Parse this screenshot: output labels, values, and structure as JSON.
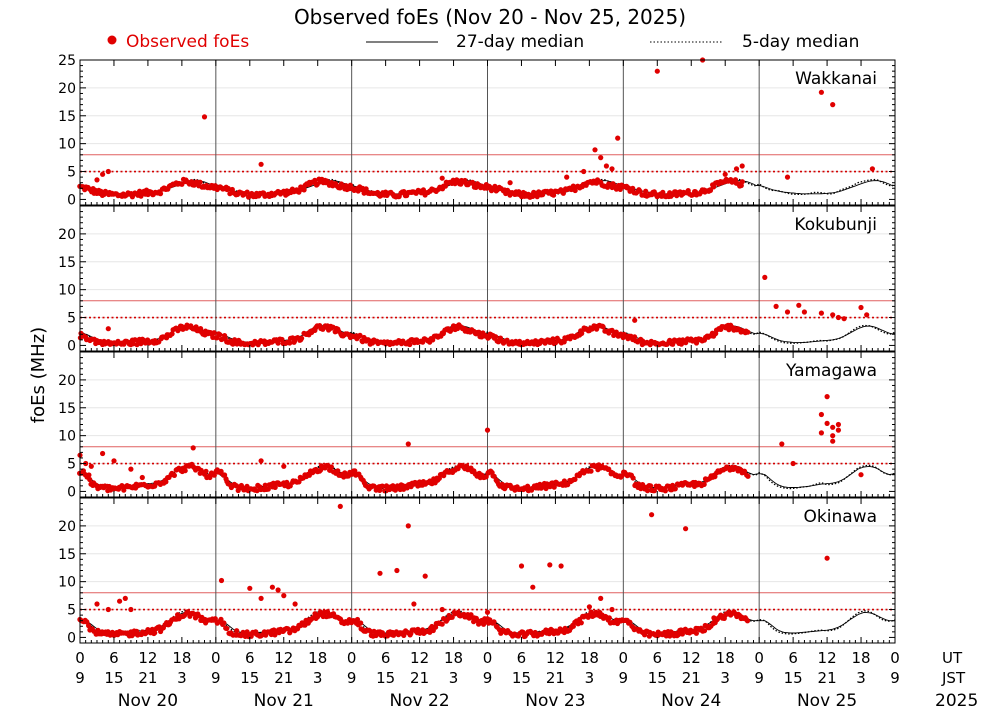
{
  "chart_data": {
    "type": "scatter",
    "title": "Observed foEs (Nov 20 - Nov 25, 2025)",
    "ylabel": "foEs (MHz)",
    "xlabel": "",
    "legend": {
      "position": "top",
      "entries": [
        {
          "label": "Observed foEs",
          "style": "red-dot"
        },
        {
          "label": "27-day median",
          "style": "solid-line"
        },
        {
          "label": "5-day median",
          "style": "dotted-line"
        }
      ]
    },
    "x_range_hours": [
      0,
      144
    ],
    "y_range": [
      -1,
      25
    ],
    "y_ticks": [
      0,
      5,
      10,
      15,
      20,
      25
    ],
    "reference_lines": [
      {
        "value": 5,
        "style": "dotted",
        "color": "#d40000"
      },
      {
        "value": 8,
        "style": "solid",
        "color": "#e06060"
      }
    ],
    "x_axis": {
      "ut_ticks": [
        "0",
        "6",
        "12",
        "18",
        "0",
        "6",
        "12",
        "18",
        "0",
        "6",
        "12",
        "18",
        "0",
        "6",
        "12",
        "18",
        "0",
        "6",
        "12",
        "18",
        "0",
        "6",
        "12",
        "18",
        "0"
      ],
      "jst_ticks": [
        "9",
        "15",
        "21",
        "3",
        "9",
        "15",
        "21",
        "3",
        "9",
        "15",
        "21",
        "3",
        "9",
        "15",
        "21",
        "3",
        "9",
        "15",
        "21",
        "3",
        "9",
        "15",
        "21",
        "3",
        "9"
      ],
      "ut_label": "UT",
      "jst_label": "JST",
      "day_labels": [
        "Nov 20",
        "Nov 21",
        "Nov 22",
        "Nov 23",
        "Nov 24",
        "Nov 25"
      ],
      "year_label": "2025"
    },
    "colors": {
      "observed": "#e00000",
      "median": "#000000",
      "refline": "#d40000",
      "frame": "#000000"
    },
    "panels": [
      {
        "station": "Wakkanai",
        "top_tick_label": "25",
        "observed_end_hour": 117,
        "median27": [
          2.5,
          2.2,
          1.8,
          1.5,
          1.3,
          1.2,
          1.1,
          1.0,
          1.0,
          1.0,
          1.0,
          1.1,
          1.2,
          1.4,
          1.8,
          2.2,
          2.6,
          3.0,
          3.3,
          3.4,
          3.2,
          2.8,
          2.2
        ],
        "median5": [
          2.8,
          2.0,
          1.6,
          1.6,
          1.3,
          1.0,
          0.9,
          0.9,
          1.0,
          1.3,
          1.2,
          1.0,
          1.0,
          1.6,
          2.0,
          2.4,
          3.0,
          3.3,
          3.5,
          3.6,
          3.0,
          2.5,
          2.4
        ],
        "baseline_obs": [
          2.2,
          2.0,
          1.6,
          1.2,
          1.0,
          0.9,
          0.8,
          0.8,
          0.9,
          1.0,
          1.1,
          1.2,
          1.3,
          1.5,
          2.0,
          2.5,
          3.0,
          3.2,
          3.1,
          2.8,
          2.5,
          2.3,
          2.2
        ],
        "spikes": [
          [
            3,
            3.5
          ],
          [
            4,
            4.5
          ],
          [
            5,
            5.0
          ],
          [
            22,
            14.8
          ],
          [
            32,
            6.3
          ],
          [
            43,
            3.0
          ],
          [
            64,
            3.8
          ],
          [
            76,
            3.0
          ],
          [
            86,
            4.0
          ],
          [
            89,
            5.0
          ],
          [
            91,
            8.9
          ],
          [
            92,
            7.5
          ],
          [
            93,
            6.0
          ],
          [
            94,
            5.5
          ],
          [
            95,
            11.0
          ],
          [
            102,
            23.0
          ],
          [
            110,
            25.0
          ],
          [
            114,
            4.5
          ],
          [
            116,
            5.5
          ],
          [
            117,
            6.0
          ],
          [
            125,
            4.0
          ],
          [
            131,
            19.2
          ],
          [
            133,
            17.0
          ],
          [
            140,
            5.5
          ]
        ]
      },
      {
        "station": "Kokubunji",
        "top_tick_label": "",
        "observed_end_hour": 118,
        "median27": [
          2.2,
          2.0,
          1.5,
          1.0,
          0.7,
          0.6,
          0.5,
          0.5,
          0.6,
          0.7,
          0.8,
          0.9,
          1.0,
          1.3,
          1.8,
          2.4,
          3.0,
          3.4,
          3.5,
          3.2,
          2.7,
          2.2,
          2.0
        ],
        "median5": [
          2.4,
          2.0,
          1.3,
          0.8,
          0.5,
          0.4,
          0.4,
          0.5,
          0.6,
          0.8,
          0.9,
          0.8,
          1.0,
          1.2,
          1.8,
          2.6,
          3.3,
          3.6,
          3.5,
          3.0,
          2.4,
          2.0,
          2.2
        ],
        "baseline_obs": [
          1.8,
          1.5,
          1.0,
          0.6,
          0.4,
          0.3,
          0.3,
          0.4,
          0.5,
          0.6,
          0.7,
          0.8,
          0.9,
          1.1,
          1.6,
          2.3,
          3.0,
          3.3,
          3.2,
          2.8,
          2.3,
          1.9,
          1.8
        ],
        "spikes": [
          [
            5,
            3.0
          ],
          [
            66,
            3.5
          ],
          [
            98,
            4.5
          ],
          [
            121,
            12.2
          ],
          [
            123,
            7.0
          ],
          [
            125,
            6.0
          ],
          [
            127,
            7.2
          ],
          [
            128,
            6.0
          ],
          [
            131,
            5.8
          ],
          [
            133,
            5.5
          ],
          [
            134,
            5.0
          ],
          [
            135,
            4.8
          ],
          [
            138,
            6.8
          ],
          [
            139,
            5.5
          ]
        ]
      },
      {
        "station": "Yamagawa",
        "top_tick_label": "",
        "observed_end_hour": 118,
        "median27": [
          3.2,
          3.0,
          2.0,
          1.2,
          0.8,
          0.7,
          0.7,
          0.8,
          0.9,
          1.1,
          1.3,
          1.4,
          1.5,
          1.8,
          2.4,
          3.2,
          4.0,
          4.4,
          4.5,
          4.2,
          3.5,
          3.0,
          3.2
        ],
        "median5": [
          3.4,
          2.8,
          1.6,
          0.9,
          0.6,
          0.5,
          0.6,
          0.8,
          0.9,
          1.2,
          1.6,
          1.2,
          1.3,
          1.6,
          2.4,
          3.3,
          4.2,
          4.6,
          4.7,
          4.3,
          3.4,
          3.0,
          3.0
        ],
        "baseline_obs": [
          3.5,
          3.2,
          1.2,
          0.8,
          0.6,
          0.5,
          0.5,
          0.6,
          0.7,
          0.9,
          1.1,
          1.2,
          1.3,
          1.6,
          2.2,
          3.0,
          3.8,
          4.2,
          4.4,
          4.0,
          3.3,
          2.8,
          3.0
        ],
        "spikes": [
          [
            0,
            6.5
          ],
          [
            1,
            5.0
          ],
          [
            2,
            4.5
          ],
          [
            4,
            6.8
          ],
          [
            6,
            5.5
          ],
          [
            9,
            4.0
          ],
          [
            11,
            2.5
          ],
          [
            20,
            7.8
          ],
          [
            32,
            5.5
          ],
          [
            36,
            4.5
          ],
          [
            58,
            8.5
          ],
          [
            72,
            11.0
          ],
          [
            124,
            8.5
          ],
          [
            126,
            5.0
          ],
          [
            131,
            13.8
          ],
          [
            131,
            10.5
          ],
          [
            132,
            12.2
          ],
          [
            132,
            17.0
          ],
          [
            133,
            10.0
          ],
          [
            133,
            9.0
          ],
          [
            133,
            11.5
          ],
          [
            134,
            11.0
          ],
          [
            134,
            12.0
          ],
          [
            138,
            3.0
          ]
        ]
      },
      {
        "station": "Okinawa",
        "top_tick_label": "",
        "observed_end_hour": 118,
        "median27": [
          3.0,
          3.0,
          2.2,
          1.3,
          0.9,
          0.8,
          0.8,
          0.9,
          1.0,
          1.1,
          1.2,
          1.3,
          1.5,
          1.9,
          2.6,
          3.4,
          4.1,
          4.5,
          4.4,
          4.0,
          3.4,
          3.0,
          3.0
        ],
        "median5": [
          3.2,
          3.0,
          1.8,
          1.0,
          0.7,
          0.6,
          0.7,
          0.8,
          1.0,
          1.2,
          1.3,
          1.2,
          1.3,
          1.7,
          2.6,
          3.6,
          4.4,
          4.8,
          4.6,
          3.9,
          3.1,
          2.9,
          3.0
        ],
        "baseline_obs": [
          3.0,
          2.8,
          1.2,
          0.8,
          0.6,
          0.5,
          0.5,
          0.6,
          0.7,
          0.8,
          1.0,
          1.1,
          1.2,
          1.5,
          2.2,
          3.0,
          3.8,
          4.2,
          4.2,
          3.8,
          3.0,
          2.7,
          3.0
        ],
        "spikes": [
          [
            3,
            6.0
          ],
          [
            5,
            5.0
          ],
          [
            7,
            6.5
          ],
          [
            8,
            7.0
          ],
          [
            9,
            5.0
          ],
          [
            25,
            10.2
          ],
          [
            30,
            8.8
          ],
          [
            32,
            7.0
          ],
          [
            34,
            9.0
          ],
          [
            35,
            8.5
          ],
          [
            36,
            7.5
          ],
          [
            38,
            6.0
          ],
          [
            46,
            23.5
          ],
          [
            53,
            11.5
          ],
          [
            56,
            12.0
          ],
          [
            58,
            20.0
          ],
          [
            59,
            6.0
          ],
          [
            61,
            11.0
          ],
          [
            64,
            5.0
          ],
          [
            72,
            4.5
          ],
          [
            78,
            12.8
          ],
          [
            80,
            9.0
          ],
          [
            83,
            13.0
          ],
          [
            85,
            12.8
          ],
          [
            90,
            5.5
          ],
          [
            92,
            7.0
          ],
          [
            94,
            5.0
          ],
          [
            101,
            22.0
          ],
          [
            107,
            19.5
          ],
          [
            112,
            3.5
          ],
          [
            132,
            14.2
          ]
        ]
      }
    ]
  }
}
